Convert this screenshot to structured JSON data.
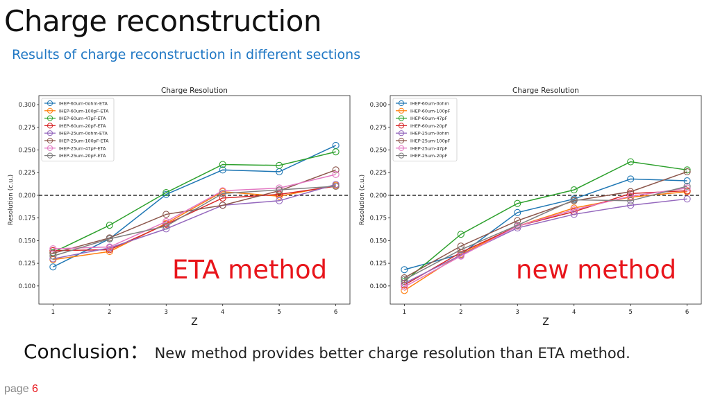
{
  "slide": {
    "title": "Charge reconstruction",
    "subtitle": "Results of charge reconstruction in different sections",
    "conclusion_head": "Conclusion：",
    "conclusion_text": "New method provides better charge resolution than ETA method.",
    "page_label": "page",
    "page_number": "6"
  },
  "labels": {
    "left": "ETA method",
    "right": "new method"
  },
  "chart_data": [
    {
      "type": "line",
      "title": "Charge Resolution",
      "xlabel": "Z",
      "ylabel": "Resolution (c.u.)",
      "x": [
        1,
        2,
        3,
        4,
        5,
        6
      ],
      "ylim": [
        0.08,
        0.31
      ],
      "yticks": [
        "0.100",
        "0.125",
        "0.150",
        "0.175",
        "0.200",
        "0.225",
        "0.250",
        "0.275",
        "0.300"
      ],
      "xticks": [
        "1",
        "2",
        "3",
        "4",
        "5",
        "6"
      ],
      "reference_line": 0.2,
      "legend_position": "upper-left",
      "series": [
        {
          "name": "IHEP-60um-0ohm-ETA",
          "color": "#1f77b4",
          "values": [
            0.121,
            0.152,
            0.201,
            0.228,
            0.226,
            0.255
          ]
        },
        {
          "name": "IHEP-60um-100pF-ETA",
          "color": "#ff7f0e",
          "values": [
            0.129,
            0.138,
            0.169,
            0.204,
            0.199,
            0.211
          ]
        },
        {
          "name": "IHEP-60um-47pF-ETA",
          "color": "#2ca02c",
          "values": [
            0.137,
            0.167,
            0.203,
            0.234,
            0.233,
            0.248
          ]
        },
        {
          "name": "IHEP-60um-20pF-ETA",
          "color": "#d62728",
          "values": [
            0.139,
            0.14,
            0.168,
            0.197,
            0.201,
            0.21
          ]
        },
        {
          "name": "IHEP-25um-0ohm-ETA",
          "color": "#9467bd",
          "values": [
            0.13,
            0.142,
            0.163,
            0.189,
            0.194,
            0.212
          ]
        },
        {
          "name": "IHEP-25um-100pF-ETA",
          "color": "#8c564b",
          "values": [
            0.136,
            0.153,
            0.179,
            0.189,
            0.205,
            0.228
          ]
        },
        {
          "name": "IHEP-25um-47pF-ETA",
          "color": "#e377c2",
          "values": [
            0.141,
            0.143,
            0.171,
            0.205,
            0.208,
            0.223
          ]
        },
        {
          "name": "IHEP-25um-20pF-ETA",
          "color": "#7f7f7f",
          "values": [
            0.133,
            0.152,
            0.166,
            0.202,
            0.206,
            0.21
          ]
        }
      ]
    },
    {
      "type": "line",
      "title": "Charge Resolution",
      "xlabel": "Z",
      "ylabel": "Resolution (c.u.)",
      "x": [
        1,
        2,
        3,
        4,
        5,
        6
      ],
      "ylim": [
        0.08,
        0.31
      ],
      "yticks": [
        "0.100",
        "0.125",
        "0.150",
        "0.175",
        "0.200",
        "0.225",
        "0.250",
        "0.275",
        "0.300"
      ],
      "xticks": [
        "1",
        "2",
        "3",
        "4",
        "5",
        "6"
      ],
      "reference_line": 0.2,
      "legend_position": "upper-left",
      "series": [
        {
          "name": "IHEP-60um-0ohm",
          "color": "#1f77b4",
          "values": [
            0.118,
            0.135,
            0.181,
            0.196,
            0.218,
            0.216
          ]
        },
        {
          "name": "IHEP-60um-100pF",
          "color": "#ff7f0e",
          "values": [
            0.095,
            0.135,
            0.166,
            0.186,
            0.198,
            0.204
          ]
        },
        {
          "name": "IHEP-60um-47pF",
          "color": "#2ca02c",
          "values": [
            0.105,
            0.157,
            0.191,
            0.206,
            0.237,
            0.228
          ]
        },
        {
          "name": "IHEP-60um-20pF",
          "color": "#d62728",
          "values": [
            0.101,
            0.137,
            0.166,
            0.182,
            0.202,
            0.205
          ]
        },
        {
          "name": "IHEP-25um-0ohm",
          "color": "#9467bd",
          "values": [
            0.103,
            0.134,
            0.164,
            0.179,
            0.189,
            0.196
          ]
        },
        {
          "name": "IHEP-25um-100pF",
          "color": "#8c564b",
          "values": [
            0.109,
            0.144,
            0.172,
            0.194,
            0.204,
            0.226
          ]
        },
        {
          "name": "IHEP-25um-47pF",
          "color": "#e377c2",
          "values": [
            0.099,
            0.133,
            0.166,
            0.184,
            0.199,
            0.208
          ]
        },
        {
          "name": "IHEP-25um-20pF",
          "color": "#7f7f7f",
          "values": [
            0.107,
            0.14,
            0.167,
            0.195,
            0.194,
            0.21
          ]
        }
      ]
    }
  ]
}
